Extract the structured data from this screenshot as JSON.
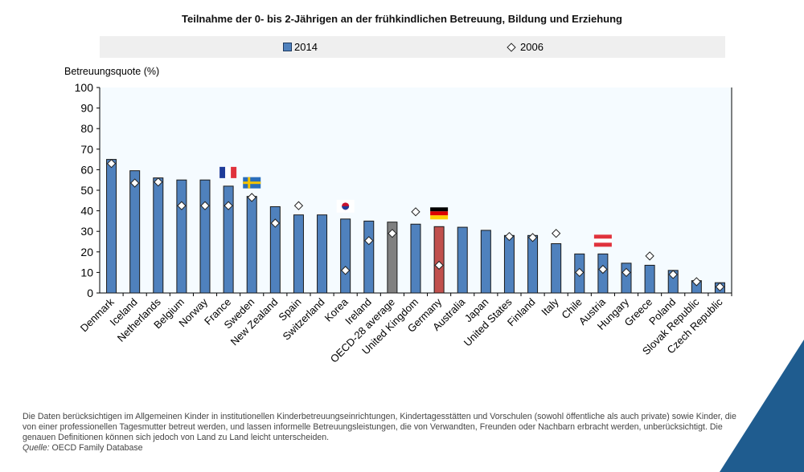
{
  "chart_data": {
    "type": "bar",
    "title": "Teilnahme der 0- bis 2-Jährigen an der frühkindlichen Betreuung, Bildung und Erziehung",
    "ylabel": "Betreuungsquote (%)",
    "ylim": [
      0,
      100
    ],
    "yticks": [
      0,
      10,
      20,
      30,
      40,
      50,
      60,
      70,
      80,
      90,
      100
    ],
    "legend_position": "top",
    "categories": [
      "Denmark",
      "Iceland",
      "Netherlands",
      "Belgium",
      "Norway",
      "France",
      "Sweden",
      "New Zealand",
      "Spain",
      "Switzerland",
      "Korea",
      "Ireland",
      "OECD-28 average",
      "United Kingdom",
      "Germany",
      "Australia",
      "Japan",
      "United States",
      "Finland",
      "Italy",
      "Chile",
      "Austria",
      "Hungary",
      "Greece",
      "Poland",
      "Slovak Republic",
      "Czech Republic"
    ],
    "series": [
      {
        "name": "2014",
        "type": "bar",
        "color": "#4f81bd",
        "values": [
          65,
          59.5,
          56,
          55,
          55,
          52,
          47,
          42,
          38,
          38,
          36,
          35,
          34.5,
          33.5,
          32.3,
          32,
          30.5,
          28,
          28,
          24,
          19,
          19,
          14.5,
          13.5,
          11,
          6,
          5
        ]
      },
      {
        "name": "2006",
        "type": "marker",
        "marker": "diamond",
        "values": [
          63,
          53.5,
          54,
          42.5,
          42.5,
          42.5,
          46.5,
          34,
          42.5,
          null,
          11,
          25.5,
          29,
          39.5,
          13.5,
          null,
          null,
          27.5,
          27,
          29,
          10,
          11.5,
          10,
          18,
          9,
          5.5,
          3
        ]
      }
    ],
    "highlight_colors": {
      "OECD-28 average": "#808080",
      "Germany": "#c0504d"
    },
    "flags": [
      "France",
      "Sweden",
      "Korea",
      "Germany",
      "Austria"
    ]
  },
  "footnote": {
    "text": "Die Daten berücksichtigen im Allgemeinen Kinder in institutionellen Kinderbetreuungseinrichtungen, Kindertagesstätten und Vorschulen (sowohl öffentliche als auch private) sowie Kinder, die von einer professionellen Tagesmutter betreut werden, und lassen informelle Betreuungsleistungen, die von Verwandten, Freunden oder Nachbarn erbracht werden, unberücksichtigt. Die genauen Definitionen können sich jedoch von Land zu Land leicht unterscheiden.",
    "source_label": "Quelle:",
    "source": "OECD Family Database"
  }
}
